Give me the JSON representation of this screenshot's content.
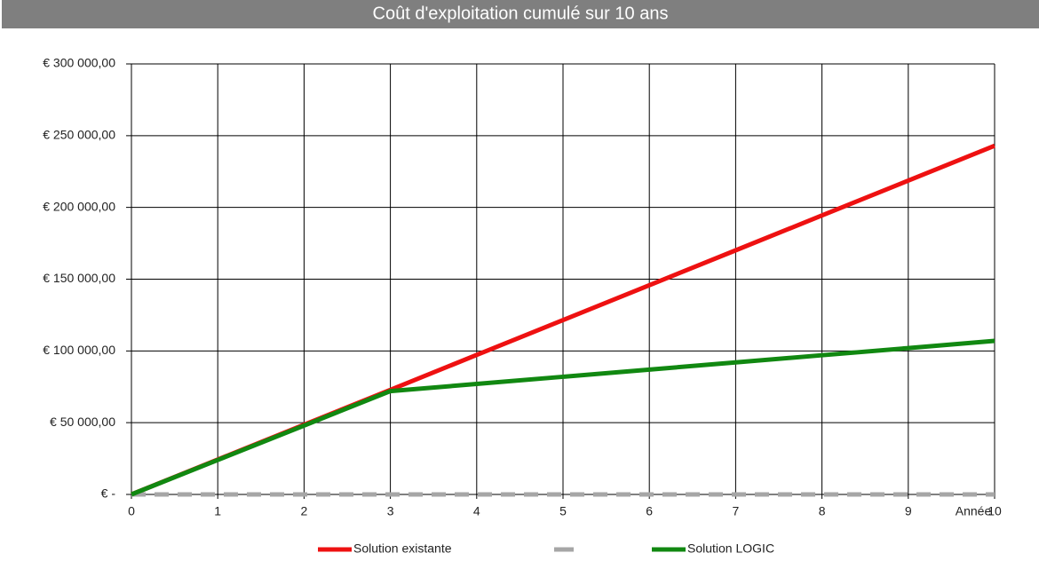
{
  "chart_data": {
    "type": "line",
    "title": "Coût d'exploitation cumulé sur 10 ans",
    "x_label": "Année",
    "x": [
      0,
      1,
      2,
      3,
      4,
      5,
      6,
      7,
      8,
      9,
      10
    ],
    "xlim": [
      0,
      10
    ],
    "xticks": [
      0,
      1,
      2,
      3,
      4,
      5,
      6,
      7,
      8,
      9,
      10
    ],
    "ylim": [
      0,
      300000
    ],
    "yticks": [
      {
        "value": 0,
        "label": "€ -"
      },
      {
        "value": 50000,
        "label": "€ 50 000,00"
      },
      {
        "value": 100000,
        "label": "€ 100 000,00"
      },
      {
        "value": 150000,
        "label": "€ 150 000,00"
      },
      {
        "value": 200000,
        "label": "€ 200 000,00"
      },
      {
        "value": 250000,
        "label": "€ 250 000,00"
      },
      {
        "value": 300000,
        "label": "€ 300 000,00"
      }
    ],
    "grid": true,
    "series": [
      {
        "name": "Solution existante",
        "color": "#ee1111",
        "values": [
          0,
          24300,
          48600,
          72900,
          97200,
          121500,
          145800,
          170100,
          194400,
          218700,
          243000
        ]
      },
      {
        "color": "#a6a6a6",
        "dashed": true,
        "values": [
          0,
          0,
          0,
          0,
          0,
          0,
          0,
          0,
          0,
          0,
          0
        ]
      },
      {
        "name": "Solution LOGIC",
        "color": "#118811",
        "values": [
          0,
          24000,
          48000,
          72000,
          77000,
          82000,
          87000,
          92000,
          97000,
          102000,
          107000
        ]
      }
    ]
  }
}
